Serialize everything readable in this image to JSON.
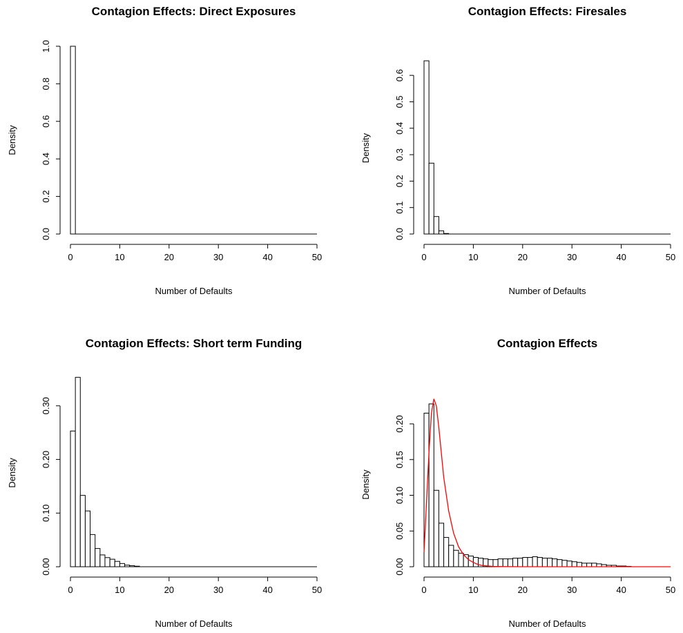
{
  "chart_data": [
    {
      "type": "bar",
      "title": "Contagion Effects: Direct Exposures",
      "xlabel": "Number of Defaults",
      "ylabel": "Density",
      "xlim": [
        0,
        50
      ],
      "ylim": [
        0,
        1.0
      ],
      "xticks": [
        "0",
        "10",
        "20",
        "30",
        "40",
        "50"
      ],
      "yticks": [
        "0.0",
        "0.2",
        "0.4",
        "0.6",
        "0.8",
        "1.0"
      ],
      "bin_width": 1,
      "bins": [
        {
          "x0": 0,
          "x1": 1,
          "density": 1.0
        }
      ],
      "curve": null
    },
    {
      "type": "bar",
      "title": "Contagion Effects: Firesales",
      "xlabel": "Number of Defaults",
      "ylabel": "Density",
      "xlim": [
        0,
        50
      ],
      "ylim": [
        0,
        0.65
      ],
      "xticks": [
        "0",
        "10",
        "20",
        "30",
        "40",
        "50"
      ],
      "yticks": [
        "0.0",
        "0.1",
        "0.2",
        "0.3",
        "0.4",
        "0.5",
        "0.6"
      ],
      "bin_width": 1,
      "bins": [
        {
          "x0": 0,
          "x1": 1,
          "density": 0.655
        },
        {
          "x0": 1,
          "x1": 2,
          "density": 0.268
        },
        {
          "x0": 2,
          "x1": 3,
          "density": 0.066
        },
        {
          "x0": 3,
          "x1": 4,
          "density": 0.012
        },
        {
          "x0": 4,
          "x1": 5,
          "density": 0.002
        }
      ],
      "curve": null
    },
    {
      "type": "bar",
      "title": "Contagion Effects: Short term Funding",
      "xlabel": "Number of Defaults",
      "ylabel": "Density",
      "xlim": [
        0,
        50
      ],
      "ylim": [
        0,
        0.35
      ],
      "xticks": [
        "0",
        "10",
        "20",
        "30",
        "40",
        "50"
      ],
      "yticks": [
        "0.00",
        "0.10",
        "0.20",
        "0.30"
      ],
      "bin_width": 1,
      "bins": [
        {
          "x0": 0,
          "x1": 1,
          "density": 0.253
        },
        {
          "x0": 1,
          "x1": 2,
          "density": 0.353
        },
        {
          "x0": 2,
          "x1": 3,
          "density": 0.133
        },
        {
          "x0": 3,
          "x1": 4,
          "density": 0.104
        },
        {
          "x0": 4,
          "x1": 5,
          "density": 0.06
        },
        {
          "x0": 5,
          "x1": 6,
          "density": 0.034
        },
        {
          "x0": 6,
          "x1": 7,
          "density": 0.022
        },
        {
          "x0": 7,
          "x1": 8,
          "density": 0.017
        },
        {
          "x0": 8,
          "x1": 9,
          "density": 0.014
        },
        {
          "x0": 9,
          "x1": 10,
          "density": 0.01
        },
        {
          "x0": 10,
          "x1": 11,
          "density": 0.006
        },
        {
          "x0": 11,
          "x1": 12,
          "density": 0.003
        },
        {
          "x0": 12,
          "x1": 13,
          "density": 0.002
        },
        {
          "x0": 13,
          "x1": 14,
          "density": 0.001
        }
      ],
      "curve": null
    },
    {
      "type": "bar",
      "title": "Contagion Effects",
      "xlabel": "Number of Defaults",
      "ylabel": "Density",
      "xlim": [
        0,
        50
      ],
      "ylim": [
        0,
        0.23
      ],
      "xticks": [
        "0",
        "10",
        "20",
        "30",
        "40",
        "50"
      ],
      "yticks": [
        "0.00",
        "0.05",
        "0.10",
        "0.15",
        "0.20"
      ],
      "bin_width": 1,
      "bins": [
        {
          "x0": 0,
          "x1": 1,
          "density": 0.215
        },
        {
          "x0": 1,
          "x1": 2,
          "density": 0.228
        },
        {
          "x0": 2,
          "x1": 3,
          "density": 0.107
        },
        {
          "x0": 3,
          "x1": 4,
          "density": 0.061
        },
        {
          "x0": 4,
          "x1": 5,
          "density": 0.041
        },
        {
          "x0": 5,
          "x1": 6,
          "density": 0.03
        },
        {
          "x0": 6,
          "x1": 7,
          "density": 0.023
        },
        {
          "x0": 7,
          "x1": 8,
          "density": 0.019
        },
        {
          "x0": 8,
          "x1": 9,
          "density": 0.017
        },
        {
          "x0": 9,
          "x1": 10,
          "density": 0.015
        },
        {
          "x0": 10,
          "x1": 11,
          "density": 0.013
        },
        {
          "x0": 11,
          "x1": 12,
          "density": 0.012
        },
        {
          "x0": 12,
          "x1": 13,
          "density": 0.011
        },
        {
          "x0": 13,
          "x1": 14,
          "density": 0.01
        },
        {
          "x0": 14,
          "x1": 15,
          "density": 0.01
        },
        {
          "x0": 15,
          "x1": 16,
          "density": 0.011
        },
        {
          "x0": 16,
          "x1": 17,
          "density": 0.011
        },
        {
          "x0": 17,
          "x1": 18,
          "density": 0.011
        },
        {
          "x0": 18,
          "x1": 19,
          "density": 0.012
        },
        {
          "x0": 19,
          "x1": 20,
          "density": 0.012
        },
        {
          "x0": 20,
          "x1": 21,
          "density": 0.013
        },
        {
          "x0": 21,
          "x1": 22,
          "density": 0.013
        },
        {
          "x0": 22,
          "x1": 23,
          "density": 0.014
        },
        {
          "x0": 23,
          "x1": 24,
          "density": 0.013
        },
        {
          "x0": 24,
          "x1": 25,
          "density": 0.012
        },
        {
          "x0": 25,
          "x1": 26,
          "density": 0.012
        },
        {
          "x0": 26,
          "x1": 27,
          "density": 0.011
        },
        {
          "x0": 27,
          "x1": 28,
          "density": 0.01
        },
        {
          "x0": 28,
          "x1": 29,
          "density": 0.009
        },
        {
          "x0": 29,
          "x1": 30,
          "density": 0.008
        },
        {
          "x0": 30,
          "x1": 31,
          "density": 0.007
        },
        {
          "x0": 31,
          "x1": 32,
          "density": 0.006
        },
        {
          "x0": 32,
          "x1": 33,
          "density": 0.005
        },
        {
          "x0": 33,
          "x1": 34,
          "density": 0.005
        },
        {
          "x0": 34,
          "x1": 35,
          "density": 0.005
        },
        {
          "x0": 35,
          "x1": 36,
          "density": 0.004
        },
        {
          "x0": 36,
          "x1": 37,
          "density": 0.003
        },
        {
          "x0": 37,
          "x1": 38,
          "density": 0.002
        },
        {
          "x0": 38,
          "x1": 39,
          "density": 0.002
        },
        {
          "x0": 39,
          "x1": 40,
          "density": 0.001
        },
        {
          "x0": 40,
          "x1": 41,
          "density": 0.001
        },
        {
          "x0": 41,
          "x1": 42,
          "density": 0.0005
        }
      ],
      "curve": {
        "color": "#ff0000",
        "x": [
          0,
          0.5,
          1,
          1.5,
          2,
          2.5,
          3,
          3.5,
          4,
          5,
          6,
          7,
          8,
          9,
          10,
          11,
          12,
          14,
          16,
          20,
          25,
          30,
          40,
          50
        ],
        "y": [
          0.02,
          0.09,
          0.16,
          0.215,
          0.235,
          0.225,
          0.195,
          0.16,
          0.125,
          0.078,
          0.047,
          0.028,
          0.017,
          0.01,
          0.006,
          0.003,
          0.0015,
          0.0005,
          0.0002,
          0,
          0,
          0,
          0,
          0
        ]
      }
    }
  ]
}
